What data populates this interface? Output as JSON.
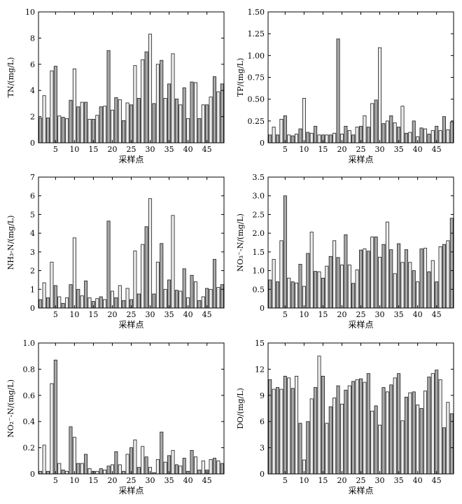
{
  "chart_data": [
    {
      "type": "bar",
      "title": "",
      "xlabel": "采样点",
      "ylabel": "TN/(mg/L)",
      "ylim": [
        0,
        10
      ],
      "yticks": [
        "0",
        "2",
        "4",
        "6",
        "8",
        "10"
      ],
      "xlim": [
        0.5,
        49.5
      ],
      "xticks": [
        "5",
        "10",
        "15",
        "20",
        "25",
        "30",
        "35",
        "40",
        "45"
      ],
      "legend": "none",
      "grid": false,
      "colors": {
        "bar_fill_a": "#a9a9a9",
        "bar_fill_b": "#ececec",
        "stroke": "#1a1a1a"
      },
      "x": [
        1,
        2,
        3,
        4,
        5,
        6,
        7,
        8,
        9,
        10,
        11,
        12,
        13,
        14,
        15,
        16,
        17,
        18,
        19,
        20,
        21,
        22,
        23,
        24,
        25,
        26,
        27,
        28,
        29,
        30,
        31,
        32,
        33,
        34,
        35,
        36,
        37,
        38,
        39,
        40,
        41,
        42,
        43,
        44,
        45,
        46,
        47,
        48,
        49
      ],
      "values": [
        1.9,
        3.6,
        1.9,
        5.5,
        5.85,
        2.05,
        1.95,
        1.85,
        3.25,
        5.65,
        2.75,
        3.1,
        3.1,
        1.8,
        1.8,
        2.1,
        2.75,
        2.8,
        7.05,
        2.5,
        3.45,
        3.3,
        1.7,
        3.05,
        2.9,
        5.9,
        3.4,
        6.35,
        6.95,
        8.3,
        3.0,
        6.0,
        6.3,
        3.4,
        4.5,
        6.8,
        3.35,
        2.9,
        4.2,
        1.85,
        4.65,
        4.6,
        1.85,
        2.9,
        2.9,
        3.5,
        5.05,
        3.9,
        4.5
      ]
    },
    {
      "type": "bar",
      "title": "",
      "xlabel": "采样点",
      "ylabel": "TP/(mg/L)",
      "ylim": [
        0,
        1.5
      ],
      "yticks": [
        "0",
        "0.25",
        "0.50",
        "0.75",
        "1.00",
        "1.25",
        "1.50"
      ],
      "xlim": [
        0.5,
        49.5
      ],
      "xticks": [
        "5",
        "10",
        "15",
        "20",
        "25",
        "30",
        "35",
        "40",
        "45"
      ],
      "legend": "none",
      "grid": false,
      "x": [
        1,
        2,
        3,
        4,
        5,
        6,
        7,
        8,
        9,
        10,
        11,
        12,
        13,
        14,
        15,
        16,
        17,
        18,
        19,
        20,
        21,
        22,
        23,
        24,
        25,
        26,
        27,
        28,
        29,
        30,
        31,
        32,
        33,
        34,
        35,
        36,
        37,
        38,
        39,
        40,
        41,
        42,
        43,
        44,
        45,
        46,
        47,
        48,
        49
      ],
      "values": [
        0.09,
        0.18,
        0.09,
        0.27,
        0.31,
        0.09,
        0.08,
        0.1,
        0.16,
        0.51,
        0.12,
        0.11,
        0.19,
        0.09,
        0.09,
        0.09,
        0.09,
        0.11,
        1.19,
        0.1,
        0.19,
        0.14,
        0.09,
        0.18,
        0.19,
        0.31,
        0.18,
        0.45,
        0.49,
        1.09,
        0.22,
        0.25,
        0.31,
        0.23,
        0.18,
        0.42,
        0.11,
        0.12,
        0.25,
        0.07,
        0.17,
        0.16,
        0.1,
        0.14,
        0.19,
        0.14,
        0.3,
        0.15,
        0.24
      ]
    },
    {
      "type": "bar",
      "title": "",
      "xlabel": "采样点",
      "ylabel": "NH₃-N/(mg/L)",
      "ylim": [
        0,
        7
      ],
      "yticks": [
        "0",
        "1",
        "2",
        "3",
        "4",
        "5",
        "6",
        "7"
      ],
      "xlim": [
        0.5,
        49.5
      ],
      "xticks": [
        "5",
        "10",
        "15",
        "20",
        "25",
        "30",
        "35",
        "40",
        "45"
      ],
      "legend": "none",
      "grid": false,
      "x": [
        1,
        2,
        3,
        4,
        5,
        6,
        7,
        8,
        9,
        10,
        11,
        12,
        13,
        14,
        15,
        16,
        17,
        18,
        19,
        20,
        21,
        22,
        23,
        24,
        25,
        26,
        27,
        28,
        29,
        30,
        31,
        32,
        33,
        34,
        35,
        36,
        37,
        38,
        39,
        40,
        41,
        42,
        43,
        44,
        45,
        46,
        47,
        48,
        49
      ],
      "values": [
        0.45,
        1.35,
        0.55,
        2.45,
        1.2,
        0.6,
        0.25,
        0.55,
        1.25,
        3.75,
        1.0,
        0.65,
        1.45,
        0.55,
        0.35,
        0.5,
        0.6,
        0.45,
        4.65,
        0.9,
        0.55,
        1.2,
        0.4,
        1.05,
        0.45,
        3.05,
        0.75,
        3.4,
        4.35,
        5.85,
        0.75,
        2.45,
        3.45,
        1.0,
        1.5,
        4.95,
        0.95,
        0.9,
        2.1,
        0.55,
        1.75,
        1.4,
        0.4,
        0.6,
        1.05,
        1.0,
        2.6,
        1.1,
        1.25
      ]
    },
    {
      "type": "bar",
      "title": "",
      "xlabel": "采样点",
      "ylabel": "NO₃⁻-N/(mg/L)",
      "ylim": [
        0,
        3.5
      ],
      "yticks": [
        "0",
        "0.5",
        "1.0",
        "1.5",
        "2.0",
        "2.5",
        "3.0",
        "3.5"
      ],
      "xlim": [
        0.5,
        49.5
      ],
      "xticks": [
        "5",
        "10",
        "15",
        "20",
        "25",
        "30",
        "35",
        "40",
        "45"
      ],
      "legend": "none",
      "grid": false,
      "x": [
        1,
        2,
        3,
        4,
        5,
        6,
        7,
        8,
        9,
        10,
        11,
        12,
        13,
        14,
        15,
        16,
        17,
        18,
        19,
        20,
        21,
        22,
        23,
        24,
        25,
        26,
        27,
        28,
        29,
        30,
        31,
        32,
        33,
        34,
        35,
        36,
        37,
        38,
        39,
        40,
        41,
        42,
        43,
        44,
        45,
        46,
        47,
        48,
        49
      ],
      "values": [
        0.75,
        1.3,
        0.7,
        1.8,
        3.0,
        0.8,
        0.7,
        0.67,
        1.17,
        0.58,
        1.46,
        2.03,
        0.98,
        0.97,
        0.8,
        1.12,
        1.38,
        1.8,
        1.35,
        1.15,
        1.96,
        1.15,
        0.66,
        1.02,
        1.55,
        1.58,
        1.52,
        1.9,
        1.9,
        1.36,
        1.7,
        2.3,
        1.56,
        0.92,
        1.72,
        1.22,
        1.56,
        1.22,
        1.0,
        0.7,
        1.58,
        1.6,
        0.97,
        1.27,
        0.7,
        1.64,
        1.7,
        1.8,
        2.4
      ]
    },
    {
      "type": "bar",
      "title": "",
      "xlabel": "采样点",
      "ylabel": "NO₂⁻-N/(mg/L)",
      "ylim": [
        0,
        1.0
      ],
      "yticks": [
        "0",
        "0.2",
        "0.4",
        "0.6",
        "0.8",
        "1.0"
      ],
      "xlim": [
        0.5,
        49.5
      ],
      "xticks": [
        "5",
        "10",
        "15",
        "20",
        "25",
        "30",
        "35",
        "40",
        "45"
      ],
      "legend": "none",
      "grid": false,
      "x": [
        1,
        2,
        3,
        4,
        5,
        6,
        7,
        8,
        9,
        10,
        11,
        12,
        13,
        14,
        15,
        16,
        17,
        18,
        19,
        20,
        21,
        22,
        23,
        24,
        25,
        26,
        27,
        28,
        29,
        30,
        31,
        32,
        33,
        34,
        35,
        36,
        37,
        38,
        39,
        40,
        41,
        42,
        43,
        44,
        45,
        46,
        47,
        48,
        49
      ],
      "values": [
        0.02,
        0.22,
        0.02,
        0.69,
        0.87,
        0.08,
        0.03,
        0.02,
        0.36,
        0.28,
        0.08,
        0.08,
        0.15,
        0.04,
        0.02,
        0.02,
        0.04,
        0.03,
        0.06,
        0.07,
        0.17,
        0.07,
        0.02,
        0.15,
        0.2,
        0.26,
        0.05,
        0.21,
        0.13,
        0.05,
        0.01,
        0.11,
        0.32,
        0.09,
        0.14,
        0.18,
        0.07,
        0.06,
        0.12,
        0.02,
        0.18,
        0.13,
        0.03,
        0.1,
        0.03,
        0.11,
        0.12,
        0.1,
        0.08
      ]
    },
    {
      "type": "bar",
      "title": "",
      "xlabel": "采样点",
      "ylabel": "DO/(mg/L)",
      "ylim": [
        0,
        15
      ],
      "yticks": [
        "0",
        "3",
        "6",
        "9",
        "12",
        "15"
      ],
      "xlim": [
        0.5,
        49.5
      ],
      "xticks": [
        "5",
        "10",
        "15",
        "20",
        "25",
        "30",
        "35",
        "40",
        "45"
      ],
      "legend": "none",
      "grid": false,
      "x": [
        1,
        2,
        3,
        4,
        5,
        6,
        7,
        8,
        9,
        10,
        11,
        12,
        13,
        14,
        15,
        16,
        17,
        18,
        19,
        20,
        21,
        22,
        23,
        24,
        25,
        26,
        27,
        28,
        29,
        30,
        31,
        32,
        33,
        34,
        35,
        36,
        37,
        38,
        39,
        40,
        41,
        42,
        43,
        44,
        45,
        46,
        47,
        48,
        49
      ],
      "values": [
        10.8,
        9.7,
        9.9,
        9.7,
        11.2,
        11.0,
        9.8,
        11.2,
        5.8,
        1.6,
        6.0,
        8.6,
        9.9,
        13.5,
        11.2,
        5.8,
        7.7,
        8.7,
        10.1,
        8.0,
        9.6,
        10.1,
        10.6,
        10.8,
        10.9,
        10.5,
        11.5,
        7.2,
        7.8,
        5.6,
        9.9,
        9.4,
        10.2,
        11.0,
        11.5,
        6.1,
        8.8,
        9.3,
        9.4,
        7.9,
        7.5,
        9.5,
        11.1,
        11.5,
        11.9,
        10.8,
        5.3,
        8.2,
        6.9
      ]
    }
  ]
}
